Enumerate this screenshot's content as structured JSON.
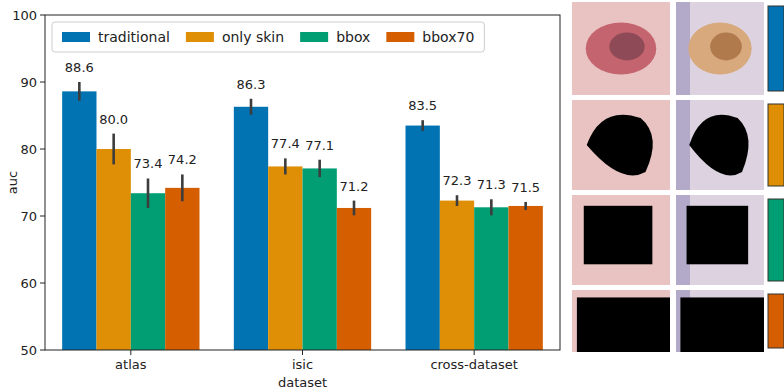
{
  "chart_data": {
    "type": "bar",
    "x_label": "dataset",
    "y_label": "auc",
    "categories": [
      "atlas",
      "isic",
      "cross-dataset"
    ],
    "series": [
      {
        "name": "traditional",
        "color": "#0173b2",
        "values": [
          88.6,
          86.3,
          83.5
        ],
        "value_labels": [
          "88.6",
          "86.3",
          "83.5"
        ],
        "errors": [
          1.4,
          1.2,
          0.8
        ]
      },
      {
        "name": "only skin",
        "color": "#de8f05",
        "values": [
          80.0,
          77.4,
          72.3
        ],
        "value_labels": [
          "80.0",
          "77.4",
          "72.3"
        ],
        "errors": [
          2.3,
          1.2,
          0.8
        ]
      },
      {
        "name": "bbox",
        "color": "#029e73",
        "values": [
          73.4,
          77.1,
          71.3
        ],
        "value_labels": [
          "73.4",
          "77.1",
          "71.3"
        ],
        "errors": [
          2.2,
          1.3,
          1.2
        ]
      },
      {
        "name": "bbox70",
        "color": "#d55e00",
        "values": [
          74.2,
          71.2,
          71.5
        ],
        "value_labels": [
          "74.2",
          "71.2",
          "71.5"
        ],
        "errors": [
          2.0,
          1.1,
          0.6
        ]
      }
    ],
    "ylim": [
      50,
      100
    ],
    "yticks": [
      50,
      60,
      70,
      80,
      90,
      100
    ],
    "grid": false,
    "legend": "upper left",
    "data_labels": true
  }
}
